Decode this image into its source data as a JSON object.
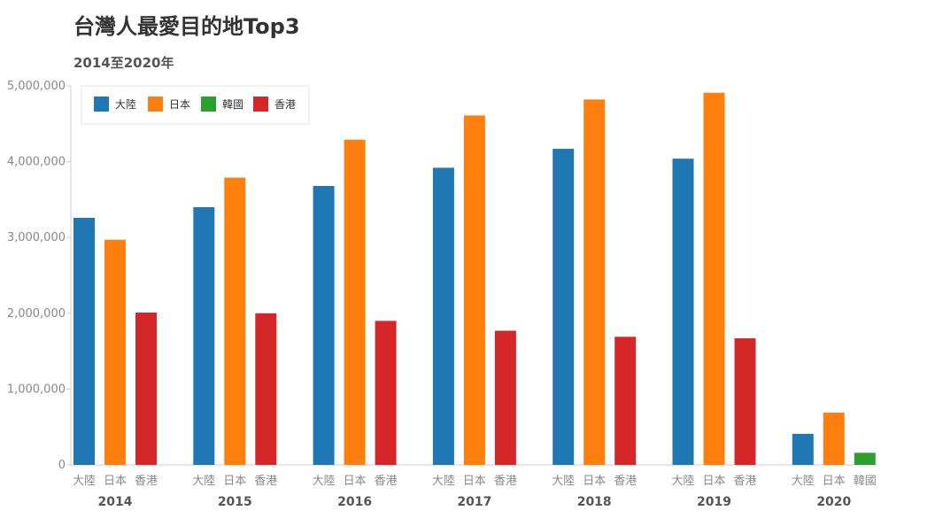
{
  "header": {
    "title": "台灣人最愛目的地Top3",
    "subtitle": "2014至2020年"
  },
  "colors": {
    "大陸": "#1f77b4",
    "日本": "#ff7f0e",
    "韓國": "#2ca02c",
    "香港": "#d62728"
  },
  "chart_data": {
    "type": "bar",
    "title": "台灣人最愛目的地Top3",
    "subtitle": "2014至2020年",
    "ylim": [
      0,
      5000000
    ],
    "yticks": [
      0,
      1000000,
      2000000,
      3000000,
      4000000,
      5000000
    ],
    "ytick_labels": [
      "0",
      "1,000,000",
      "2,000,000",
      "3,000,000",
      "4,000,000",
      "5,000,000"
    ],
    "legend": {
      "placement": "top-left",
      "items": [
        "大陸",
        "日本",
        "韓國",
        "香港"
      ]
    },
    "groups": [
      {
        "year": "2014",
        "bars": [
          {
            "name": "大陸",
            "value": 3260000
          },
          {
            "name": "日本",
            "value": 2970000
          },
          {
            "name": "香港",
            "value": 2010000
          }
        ]
      },
      {
        "year": "2015",
        "bars": [
          {
            "name": "大陸",
            "value": 3400000
          },
          {
            "name": "日本",
            "value": 3790000
          },
          {
            "name": "香港",
            "value": 2000000
          }
        ]
      },
      {
        "year": "2016",
        "bars": [
          {
            "name": "大陸",
            "value": 3680000
          },
          {
            "name": "日本",
            "value": 4290000
          },
          {
            "name": "香港",
            "value": 1900000
          }
        ]
      },
      {
        "year": "2017",
        "bars": [
          {
            "name": "大陸",
            "value": 3920000
          },
          {
            "name": "日本",
            "value": 4610000
          },
          {
            "name": "香港",
            "value": 1770000
          }
        ]
      },
      {
        "year": "2018",
        "bars": [
          {
            "name": "大陸",
            "value": 4170000
          },
          {
            "name": "日本",
            "value": 4820000
          },
          {
            "name": "香港",
            "value": 1690000
          }
        ]
      },
      {
        "year": "2019",
        "bars": [
          {
            "name": "大陸",
            "value": 4040000
          },
          {
            "name": "日本",
            "value": 4910000
          },
          {
            "name": "香港",
            "value": 1670000
          }
        ]
      },
      {
        "year": "2020",
        "bars": [
          {
            "name": "大陸",
            "value": 410000
          },
          {
            "name": "日本",
            "value": 690000
          },
          {
            "name": "韓國",
            "value": 160000
          }
        ]
      }
    ]
  }
}
